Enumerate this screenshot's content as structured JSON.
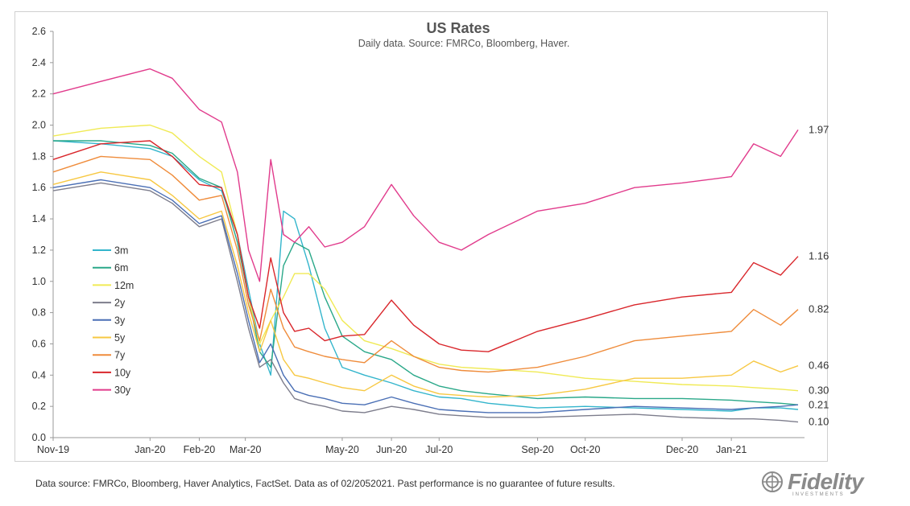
{
  "chart_data": {
    "type": "line",
    "title": "US Rates",
    "subtitle": "Daily data.  Source: FMRCo, Bloomberg, Haver.",
    "ylim": [
      0.0,
      2.6
    ],
    "yticks": [
      "0.0",
      "0.2",
      "0.4",
      "0.6",
      "0.8",
      "1.0",
      "1.2",
      "1.4",
      "1.6",
      "1.8",
      "2.0",
      "2.2",
      "2.4",
      "2.6"
    ],
    "xlim": [
      "2019-11-01",
      "2021-02-12"
    ],
    "xticks": [
      {
        "label": "Nov-19",
        "date": "2019-11-01"
      },
      {
        "label": "Jan-20",
        "date": "2020-01-01"
      },
      {
        "label": "Feb-20",
        "date": "2020-02-01"
      },
      {
        "label": "Mar-20",
        "date": "2020-03-01"
      },
      {
        "label": "May-20",
        "date": "2020-05-01"
      },
      {
        "label": "Jun-20",
        "date": "2020-06-01"
      },
      {
        "label": "Jul-20",
        "date": "2020-07-01"
      },
      {
        "label": "Sep-20",
        "date": "2020-09-01"
      },
      {
        "label": "Oct-20",
        "date": "2020-10-01"
      },
      {
        "label": "Dec-20",
        "date": "2020-12-01"
      },
      {
        "label": "Jan-21",
        "date": "2021-01-01"
      }
    ],
    "grid": false,
    "legend_position": "left",
    "series": [
      {
        "name": "3m",
        "color": "#33b5cc",
        "end_label": "",
        "x": [
          "2019-11-01",
          "2019-12-01",
          "2020-01-01",
          "2020-01-15",
          "2020-02-01",
          "2020-02-15",
          "2020-02-25",
          "2020-03-03",
          "2020-03-10",
          "2020-03-17",
          "2020-03-25",
          "2020-04-01",
          "2020-04-10",
          "2020-04-20",
          "2020-05-01",
          "2020-05-15",
          "2020-06-01",
          "2020-06-15",
          "2020-07-01",
          "2020-07-15",
          "2020-08-01",
          "2020-09-01",
          "2020-10-01",
          "2020-11-01",
          "2020-12-01",
          "2021-01-01",
          "2021-01-15",
          "2021-02-01",
          "2021-02-12"
        ],
        "y": [
          1.9,
          1.88,
          1.85,
          1.8,
          1.65,
          1.58,
          1.3,
          0.95,
          0.6,
          0.4,
          1.45,
          1.4,
          1.1,
          0.7,
          0.45,
          0.4,
          0.35,
          0.3,
          0.26,
          0.25,
          0.22,
          0.19,
          0.2,
          0.19,
          0.18,
          0.17,
          0.19,
          0.19,
          0.18
        ]
      },
      {
        "name": "6m",
        "color": "#2aa889",
        "end_label": "0.21",
        "x": [
          "2019-11-01",
          "2019-12-01",
          "2020-01-01",
          "2020-01-15",
          "2020-02-01",
          "2020-02-15",
          "2020-02-25",
          "2020-03-03",
          "2020-03-10",
          "2020-03-17",
          "2020-03-25",
          "2020-04-01",
          "2020-04-10",
          "2020-04-20",
          "2020-05-01",
          "2020-05-15",
          "2020-06-01",
          "2020-06-15",
          "2020-07-01",
          "2020-07-15",
          "2020-08-01",
          "2020-09-01",
          "2020-10-01",
          "2020-11-01",
          "2020-12-01",
          "2021-01-01",
          "2021-01-15",
          "2021-02-01",
          "2021-02-12"
        ],
        "y": [
          1.9,
          1.9,
          1.87,
          1.82,
          1.66,
          1.6,
          1.25,
          0.9,
          0.55,
          0.45,
          1.1,
          1.25,
          1.2,
          0.9,
          0.65,
          0.55,
          0.5,
          0.4,
          0.33,
          0.3,
          0.28,
          0.25,
          0.26,
          0.25,
          0.25,
          0.24,
          0.23,
          0.22,
          0.21
        ]
      },
      {
        "name": "12m",
        "color": "#f0ea55",
        "end_label": "0.30",
        "x": [
          "2019-11-01",
          "2019-12-01",
          "2020-01-01",
          "2020-01-15",
          "2020-02-01",
          "2020-02-15",
          "2020-02-25",
          "2020-03-03",
          "2020-03-10",
          "2020-03-17",
          "2020-03-25",
          "2020-04-01",
          "2020-04-10",
          "2020-04-20",
          "2020-05-01",
          "2020-05-15",
          "2020-06-01",
          "2020-06-15",
          "2020-07-01",
          "2020-07-15",
          "2020-08-01",
          "2020-09-01",
          "2020-10-01",
          "2020-11-01",
          "2020-12-01",
          "2021-01-01",
          "2021-01-15",
          "2021-02-01",
          "2021-02-12"
        ],
        "y": [
          1.93,
          1.98,
          2.0,
          1.95,
          1.8,
          1.7,
          1.3,
          0.9,
          0.6,
          0.75,
          0.9,
          1.05,
          1.05,
          0.95,
          0.75,
          0.62,
          0.57,
          0.52,
          0.47,
          0.45,
          0.44,
          0.42,
          0.38,
          0.36,
          0.34,
          0.33,
          0.32,
          0.31,
          0.3
        ]
      },
      {
        "name": "2y",
        "color": "#7d7d8c",
        "end_label": "0.10",
        "x": [
          "2019-11-01",
          "2019-12-01",
          "2020-01-01",
          "2020-01-15",
          "2020-02-01",
          "2020-02-15",
          "2020-02-25",
          "2020-03-03",
          "2020-03-10",
          "2020-03-17",
          "2020-03-25",
          "2020-04-01",
          "2020-04-10",
          "2020-04-20",
          "2020-05-01",
          "2020-05-15",
          "2020-06-01",
          "2020-06-15",
          "2020-07-01",
          "2020-07-15",
          "2020-08-01",
          "2020-09-01",
          "2020-10-01",
          "2020-11-01",
          "2020-12-01",
          "2021-01-01",
          "2021-01-15",
          "2021-02-01",
          "2021-02-12"
        ],
        "y": [
          1.58,
          1.63,
          1.58,
          1.5,
          1.35,
          1.4,
          1.0,
          0.7,
          0.45,
          0.5,
          0.35,
          0.25,
          0.22,
          0.2,
          0.17,
          0.16,
          0.2,
          0.18,
          0.15,
          0.14,
          0.13,
          0.13,
          0.14,
          0.15,
          0.13,
          0.12,
          0.12,
          0.11,
          0.1
        ]
      },
      {
        "name": "3y",
        "color": "#4a6fb5",
        "end_label": "",
        "x": [
          "2019-11-01",
          "2019-12-01",
          "2020-01-01",
          "2020-01-15",
          "2020-02-01",
          "2020-02-15",
          "2020-02-25",
          "2020-03-03",
          "2020-03-10",
          "2020-03-17",
          "2020-03-25",
          "2020-04-01",
          "2020-04-10",
          "2020-04-20",
          "2020-05-01",
          "2020-05-15",
          "2020-06-01",
          "2020-06-15",
          "2020-07-01",
          "2020-07-15",
          "2020-08-01",
          "2020-09-01",
          "2020-10-01",
          "2020-11-01",
          "2020-12-01",
          "2021-01-01",
          "2021-01-15",
          "2021-02-01",
          "2021-02-12"
        ],
        "y": [
          1.6,
          1.65,
          1.6,
          1.52,
          1.37,
          1.42,
          1.05,
          0.75,
          0.48,
          0.6,
          0.4,
          0.3,
          0.27,
          0.25,
          0.22,
          0.21,
          0.26,
          0.22,
          0.18,
          0.17,
          0.16,
          0.16,
          0.18,
          0.2,
          0.19,
          0.18,
          0.19,
          0.2,
          0.21
        ]
      },
      {
        "name": "5y",
        "color": "#f7c842",
        "end_label": "0.46",
        "x": [
          "2019-11-01",
          "2019-12-01",
          "2020-01-01",
          "2020-01-15",
          "2020-02-01",
          "2020-02-15",
          "2020-02-25",
          "2020-03-03",
          "2020-03-10",
          "2020-03-17",
          "2020-03-25",
          "2020-04-01",
          "2020-04-10",
          "2020-04-20",
          "2020-05-01",
          "2020-05-15",
          "2020-06-01",
          "2020-06-15",
          "2020-07-01",
          "2020-07-15",
          "2020-08-01",
          "2020-09-01",
          "2020-10-01",
          "2020-11-01",
          "2020-12-01",
          "2021-01-01",
          "2021-01-15",
          "2021-02-01",
          "2021-02-12"
        ],
        "y": [
          1.62,
          1.7,
          1.65,
          1.55,
          1.4,
          1.45,
          1.1,
          0.8,
          0.55,
          0.75,
          0.5,
          0.4,
          0.38,
          0.35,
          0.32,
          0.3,
          0.4,
          0.33,
          0.28,
          0.27,
          0.26,
          0.27,
          0.31,
          0.38,
          0.38,
          0.4,
          0.49,
          0.42,
          0.46
        ]
      },
      {
        "name": "7y",
        "color": "#ef8c3b",
        "end_label": "0.82",
        "x": [
          "2019-11-01",
          "2019-12-01",
          "2020-01-01",
          "2020-01-15",
          "2020-02-01",
          "2020-02-15",
          "2020-02-25",
          "2020-03-03",
          "2020-03-10",
          "2020-03-17",
          "2020-03-25",
          "2020-04-01",
          "2020-04-10",
          "2020-04-20",
          "2020-05-01",
          "2020-05-15",
          "2020-06-01",
          "2020-06-15",
          "2020-07-01",
          "2020-07-15",
          "2020-08-01",
          "2020-09-01",
          "2020-10-01",
          "2020-11-01",
          "2020-12-01",
          "2021-01-01",
          "2021-01-15",
          "2021-02-01",
          "2021-02-12"
        ],
        "y": [
          1.7,
          1.8,
          1.78,
          1.68,
          1.52,
          1.55,
          1.2,
          0.85,
          0.62,
          0.95,
          0.7,
          0.58,
          0.55,
          0.52,
          0.5,
          0.48,
          0.62,
          0.52,
          0.45,
          0.43,
          0.42,
          0.45,
          0.52,
          0.62,
          0.65,
          0.68,
          0.82,
          0.72,
          0.82
        ]
      },
      {
        "name": "10y",
        "color": "#d9262b",
        "end_label": "1.16",
        "x": [
          "2019-11-01",
          "2019-12-01",
          "2020-01-01",
          "2020-01-15",
          "2020-02-01",
          "2020-02-15",
          "2020-02-25",
          "2020-03-03",
          "2020-03-10",
          "2020-03-17",
          "2020-03-25",
          "2020-04-01",
          "2020-04-10",
          "2020-04-20",
          "2020-05-01",
          "2020-05-15",
          "2020-06-01",
          "2020-06-15",
          "2020-07-01",
          "2020-07-15",
          "2020-08-01",
          "2020-09-01",
          "2020-10-01",
          "2020-11-01",
          "2020-12-01",
          "2021-01-01",
          "2021-01-15",
          "2021-02-01",
          "2021-02-12"
        ],
        "y": [
          1.78,
          1.88,
          1.9,
          1.8,
          1.62,
          1.6,
          1.3,
          0.9,
          0.7,
          1.15,
          0.8,
          0.68,
          0.7,
          0.62,
          0.65,
          0.66,
          0.88,
          0.72,
          0.6,
          0.56,
          0.55,
          0.68,
          0.76,
          0.85,
          0.9,
          0.93,
          1.12,
          1.04,
          1.16
        ]
      },
      {
        "name": "30y",
        "color": "#e13b8c",
        "end_label": "1.97",
        "x": [
          "2019-11-01",
          "2019-12-01",
          "2020-01-01",
          "2020-01-15",
          "2020-02-01",
          "2020-02-15",
          "2020-02-25",
          "2020-03-03",
          "2020-03-10",
          "2020-03-17",
          "2020-03-25",
          "2020-04-01",
          "2020-04-10",
          "2020-04-20",
          "2020-05-01",
          "2020-05-15",
          "2020-06-01",
          "2020-06-15",
          "2020-07-01",
          "2020-07-15",
          "2020-08-01",
          "2020-09-01",
          "2020-10-01",
          "2020-11-01",
          "2020-12-01",
          "2021-01-01",
          "2021-01-15",
          "2021-02-01",
          "2021-02-12"
        ],
        "y": [
          2.2,
          2.28,
          2.36,
          2.3,
          2.1,
          2.02,
          1.7,
          1.2,
          1.0,
          1.78,
          1.3,
          1.25,
          1.35,
          1.22,
          1.25,
          1.35,
          1.62,
          1.42,
          1.25,
          1.2,
          1.3,
          1.45,
          1.5,
          1.6,
          1.63,
          1.67,
          1.88,
          1.8,
          1.97
        ]
      }
    ]
  },
  "footer": {
    "note": "Data source: FMRCo, Bloomberg, Haver Analytics, FactSet. Data as of 02/2052021. Past performance is no guarantee of future results."
  },
  "brand": {
    "name": "Fidelity",
    "tagline": "INVESTMENTS"
  }
}
